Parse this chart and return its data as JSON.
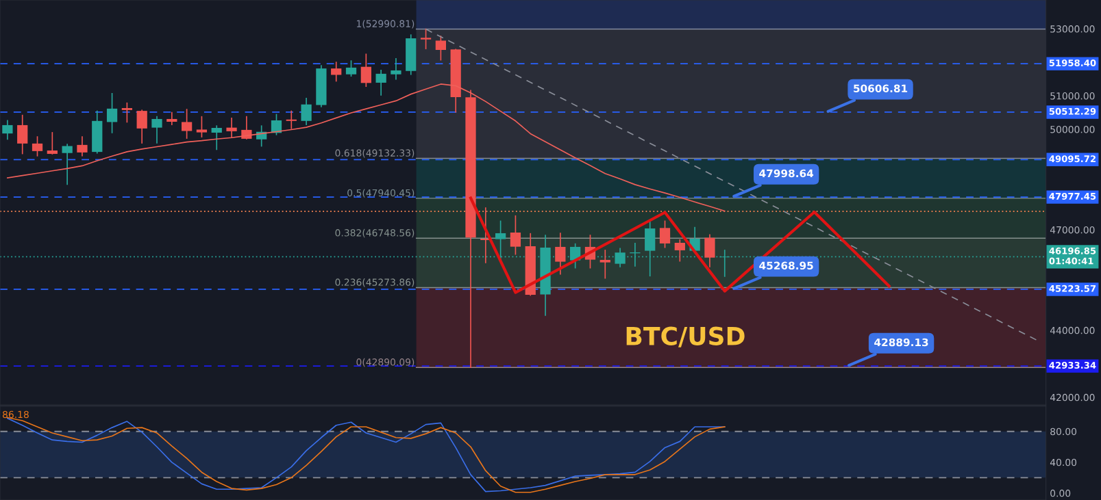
{
  "chart_data": [
    {
      "type": "candlestick",
      "categories": [
        null,
        null,
        null,
        null,
        null,
        null,
        null,
        null,
        null,
        null,
        null,
        null,
        null,
        null,
        null,
        null,
        null,
        null,
        null,
        null,
        null,
        null,
        null,
        null,
        null,
        null,
        null,
        null,
        null,
        null,
        null,
        null,
        null,
        null,
        null,
        null,
        null,
        null,
        null,
        null,
        null,
        null,
        null,
        null,
        null,
        null,
        null,
        null,
        null,
        null,
        null,
        null,
        null,
        null,
        null,
        null,
        null,
        null,
        null,
        null,
        null,
        null,
        null,
        null,
        null,
        null,
        null,
        null,
        null,
        null
      ],
      "ohlc": [
        [
          49875,
          50258,
          49709,
          50125
        ],
        [
          50125,
          50417,
          49275,
          49575
        ],
        [
          49575,
          49775,
          49209,
          49350
        ],
        [
          49367,
          49900,
          49267,
          49267
        ],
        [
          49292,
          49550,
          48359,
          49500
        ],
        [
          49534,
          49775,
          49209,
          49309
        ],
        [
          49325,
          50542,
          49292,
          50250
        ],
        [
          50217,
          51066,
          49900,
          50617
        ],
        [
          50634,
          50783,
          50217,
          50575
        ],
        [
          50550,
          50567,
          49592,
          50025
        ],
        [
          50050,
          50375,
          49592,
          50308
        ],
        [
          50308,
          50500,
          50142,
          50225
        ],
        [
          50217,
          50592,
          49734,
          49950
        ],
        [
          49992,
          50375,
          49775,
          49908
        ],
        [
          49900,
          50100,
          49400,
          50042
        ],
        [
          50050,
          50333,
          49775,
          49942
        ],
        [
          49983,
          50375,
          49717,
          49717
        ],
        [
          49700,
          50100,
          49500,
          49925
        ],
        [
          49892,
          50442,
          49842,
          50267
        ],
        [
          50292,
          50542,
          50025,
          50250
        ],
        [
          50250,
          50925,
          50142,
          50742
        ],
        [
          50725,
          51899,
          50675,
          51816
        ],
        [
          51816,
          52000,
          51441,
          51625
        ],
        [
          51641,
          52041,
          51591,
          51841
        ],
        [
          51866,
          52241,
          51283,
          51383
        ],
        [
          51391,
          51758,
          51025,
          51658
        ],
        [
          51641,
          52108,
          51500,
          51758
        ],
        [
          51741,
          52816,
          51641,
          52716
        ],
        [
          52732,
          52991,
          52408,
          52682
        ],
        [
          52647,
          52778,
          52071,
          52370
        ],
        [
          52384,
          52384,
          50518,
          50963
        ],
        [
          50956,
          51160,
          42890,
          46771
        ],
        [
          46734,
          47652,
          46020,
          46694
        ],
        [
          46721,
          47258,
          46116,
          46898
        ],
        [
          46918,
          47414,
          46272,
          46496
        ],
        [
          46510,
          46884,
          45048,
          45062
        ],
        [
          45068,
          46836,
          44450,
          46469
        ],
        [
          46490,
          46898,
          45680,
          46048
        ],
        [
          46088,
          46578,
          45864,
          46490
        ],
        [
          46490,
          46836,
          45864,
          46109
        ],
        [
          46102,
          46388,
          45558,
          46027
        ],
        [
          45986,
          46442,
          45898,
          46320
        ],
        [
          46299,
          46592,
          45918,
          46326
        ],
        [
          46374,
          47258,
          45626,
          47040
        ],
        [
          47054,
          47258,
          46476,
          46592
        ],
        [
          46612,
          46700,
          46068,
          46388
        ],
        [
          46374,
          47068,
          46360,
          46734
        ],
        [
          46762,
          46850,
          45898,
          46170
        ],
        [
          46180,
          46388,
          45612,
          46197
        ],
        null,
        null,
        null,
        null,
        null,
        null,
        null,
        null,
        null,
        null,
        null,
        null,
        null,
        null,
        null,
        null,
        null,
        null,
        null,
        null,
        null
      ],
      "colors": [
        "#26a69a",
        "#ef5350",
        "#ef5350",
        "#ef5350",
        "#26a69a",
        "#ef5350",
        "#26a69a",
        "#26a69a",
        "#ef5350",
        "#ef5350",
        "#26a69a",
        "#ef5350",
        "#ef5350",
        "#ef5350",
        "#26a69a",
        "#ef5350",
        "#ef5350",
        "#26a69a",
        "#26a69a",
        "#ef5350",
        "#26a69a",
        "#26a69a",
        "#ef5350",
        "#26a69a",
        "#ef5350",
        "#26a69a",
        "#26a69a",
        "#26a69a",
        "#ef5350",
        "#ef5350",
        "#ef5350",
        "#ef5350",
        "#ef5350",
        "#26a69a",
        "#ef5350",
        "#ef5350",
        "#26a69a",
        "#ef5350",
        "#26a69a",
        "#ef5350",
        "#ef5350",
        "#26a69a",
        "#26a69a",
        "#26a69a",
        "#ef5350",
        "#ef5350",
        "#26a69a",
        "#ef5350",
        "#26a69a",
        null,
        null,
        null,
        null,
        null,
        null,
        null,
        null,
        null,
        null,
        null,
        null,
        null,
        null,
        null,
        null,
        null,
        null,
        null,
        null,
        null
      ],
      "series": [
        {
          "type": "line",
          "color": "#f0605a",
          "line_style": "solid",
          "values": [
            48550,
            48620,
            48690,
            48760,
            48830,
            48910,
            49060,
            49200,
            49330,
            49410,
            49480,
            49550,
            49620,
            49660,
            49710,
            49750,
            49810,
            49870,
            49930,
            49990,
            50060,
            50190,
            50340,
            50490,
            50610,
            50730,
            50850,
            51050,
            51200,
            51350,
            51300,
            51090,
            50830,
            50540,
            50250,
            49870,
            49630,
            49390,
            49150,
            48920,
            48680,
            48520,
            48350,
            48220,
            48100,
            47970,
            47830,
            47700,
            47560,
            null,
            null,
            null,
            null,
            null,
            null,
            null,
            null,
            null,
            null,
            null,
            null,
            null,
            null,
            null,
            null,
            null,
            null,
            null,
            null,
            null
          ]
        },
        {
          "type": "line",
          "color": "#8a8e99",
          "line_style": "dashed",
          "values": [
            null,
            null,
            null,
            null,
            null,
            null,
            null,
            null,
            null,
            null,
            null,
            null,
            null,
            null,
            null,
            null,
            null,
            null,
            null,
            null,
            null,
            null,
            null,
            null,
            null,
            null,
            null,
            null,
            52990,
            null,
            null,
            null,
            null,
            null,
            null,
            null,
            null,
            null,
            null,
            null,
            null,
            null,
            null,
            null,
            null,
            null,
            null,
            null,
            null,
            null,
            null,
            null,
            null,
            null,
            null,
            null,
            null,
            null,
            null,
            null,
            null,
            null,
            null,
            null,
            null,
            null,
            null,
            null,
            null,
            43680
          ]
        },
        {
          "type": "line",
          "color": "#e01414",
          "line_style": "solid",
          "values": [
            null,
            null,
            null,
            null,
            null,
            null,
            null,
            null,
            null,
            null,
            null,
            null,
            null,
            null,
            null,
            null,
            null,
            null,
            null,
            null,
            null,
            null,
            null,
            null,
            null,
            null,
            null,
            null,
            null,
            null,
            null,
            47950,
            null,
            null,
            45130,
            null,
            null,
            null,
            null,
            null,
            null,
            null,
            null,
            null,
            47520,
            null,
            null,
            null,
            45170,
            null,
            null,
            null,
            null,
            null,
            47530,
            null,
            null,
            null,
            null,
            45320,
            null,
            null,
            null,
            null,
            null,
            null,
            null,
            null,
            null,
            null
          ]
        }
      ],
      "bands": [
        {
          "axis": "y",
          "from": 53860,
          "to": 52990.81,
          "label": "1(52990.81)",
          "color": "#1e2b52"
        },
        {
          "axis": "y",
          "from": 52990.81,
          "to": 49132.33,
          "label": "0.618(49132.33)",
          "color": "#2a2d38"
        },
        {
          "axis": "y",
          "from": 49132.33,
          "to": 47940.45,
          "label": "0.5(47940.45)",
          "color": "#13343a"
        },
        {
          "axis": "y",
          "from": 47940.45,
          "to": 46748.56,
          "label": "0.382(46748.56)",
          "color": "#1f3630"
        },
        {
          "axis": "y",
          "from": 46748.56,
          "to": 45273.86,
          "label": "0.236(45273.86)",
          "color": "#283a34"
        },
        {
          "axis": "y",
          "from": 45273.86,
          "to": 42890.09,
          "label": "0(42890.09)",
          "color": "#41202a"
        }
      ],
      "ref_lines": [
        {
          "axis": "y",
          "value": 51958.4,
          "label": "51958.40",
          "color": "#2962ff",
          "line_style": "dashed"
        },
        {
          "axis": "y",
          "value": 50512.29,
          "label": "50512.29",
          "color": "#2962ff",
          "line_style": "dashed"
        },
        {
          "axis": "y",
          "value": 49095.72,
          "label": "49095.72",
          "color": "#2962ff",
          "line_style": "dashed"
        },
        {
          "axis": "y",
          "value": 47977.45,
          "label": "47977.45",
          "color": "#2962ff",
          "line_style": "dashed"
        },
        {
          "axis": "y",
          "value": 47551,
          "color": "#e57a4d",
          "line_style": "dotted"
        },
        {
          "axis": "y",
          "value": 46196.85,
          "label": "46196.85\n01:40:41",
          "color": "#26a69a",
          "line_style": "dotted"
        },
        {
          "axis": "y",
          "value": 45223.57,
          "label": "45223.57",
          "color": "#2962ff",
          "line_style": "dashed"
        },
        {
          "axis": "y",
          "value": 42933.34,
          "label": "42933.34",
          "color": "#1c1cf0",
          "line_style": "dashed"
        }
      ],
      "annotations": [
        {
          "text": "50606.81",
          "y": 50512.29
        },
        {
          "text": "47998.64",
          "y": 47977.45
        },
        {
          "text": "45268.95",
          "y": 45223.57
        },
        {
          "text": "42889.13",
          "y": 42933.34
        },
        "BTC/USD"
      ],
      "ylim": [
        41770,
        53860
      ],
      "yticks": [
        {
          "value": 42000,
          "label": "42000.00"
        },
        {
          "value": 44000,
          "label": "44000.00"
        },
        {
          "value": 47000,
          "label": "47000.00"
        },
        {
          "value": 50000,
          "label": "50000.00"
        },
        {
          "value": 51000,
          "label": "51000.00"
        },
        {
          "value": 53000,
          "label": "53000.00"
        }
      ],
      "tick_labels": "y",
      "grid": false,
      "legend": false
    },
    {
      "type": "line",
      "categories": [
        null,
        null,
        null,
        null,
        null,
        null,
        null,
        null,
        null,
        null,
        null,
        null,
        null,
        null,
        null,
        null,
        null,
        null,
        null,
        null,
        null,
        null,
        null,
        null,
        null,
        null,
        null,
        null,
        null,
        null,
        null,
        null,
        null,
        null,
        null,
        null,
        null,
        null,
        null,
        null,
        null,
        null,
        null,
        null,
        null,
        null,
        null,
        null,
        null,
        null,
        null,
        null,
        null,
        null,
        null,
        null,
        null,
        null,
        null,
        null,
        null,
        null,
        null,
        null,
        null,
        null,
        null,
        null,
        null,
        null
      ],
      "series": [
        {
          "color": "#3a6ee8",
          "values": [
            97,
            88,
            78,
            69,
            67,
            66,
            75,
            85,
            93,
            79,
            60,
            40,
            26,
            12,
            5,
            5,
            6,
            7,
            20,
            34,
            55,
            72,
            88,
            92,
            78,
            72,
            66,
            77,
            89,
            91,
            59,
            24,
            2,
            3,
            5,
            7,
            10,
            16,
            22,
            23,
            24,
            25,
            27,
            41,
            59,
            67,
            86,
            86,
            86,
            null,
            null,
            null,
            null,
            null,
            null,
            null,
            null,
            null,
            null,
            null,
            null,
            null,
            null,
            null,
            null,
            null,
            null,
            null,
            null,
            null
          ]
        },
        {
          "color": "#e8751a",
          "values": [
            98,
            94,
            86,
            78,
            73,
            68,
            69,
            74,
            84,
            85,
            78,
            61,
            45,
            27,
            15,
            6,
            4,
            6,
            11,
            20,
            36,
            54,
            73,
            86,
            86,
            79,
            72,
            71,
            77,
            85,
            78,
            60,
            29,
            9,
            1,
            1,
            5,
            10,
            15,
            19,
            24,
            24,
            24,
            30,
            41,
            57,
            73,
            83,
            86,
            null,
            null,
            null,
            null,
            null,
            null,
            null,
            null,
            null,
            null,
            null,
            null,
            null,
            null,
            null,
            null,
            null,
            null,
            null,
            null,
            null
          ]
        }
      ],
      "bands": [
        {
          "axis": "y",
          "from": 20,
          "to": 80,
          "color": "#1b2a47"
        }
      ],
      "ref_lines": [
        {
          "axis": "y",
          "value": 80,
          "color": "#8a8e99",
          "line_style": "dashed"
        },
        {
          "axis": "y",
          "value": 20,
          "color": "#8a8e99",
          "line_style": "dashed"
        }
      ],
      "annotations": [
        "86.18"
      ],
      "ylim": [
        -9,
        113
      ],
      "yticks": [
        {
          "value": 0,
          "label": "0.00"
        },
        {
          "value": 40,
          "label": "40.00"
        },
        {
          "value": 80,
          "label": "80.00"
        }
      ],
      "tick_labels": "y",
      "grid": false,
      "legend": false
    }
  ]
}
